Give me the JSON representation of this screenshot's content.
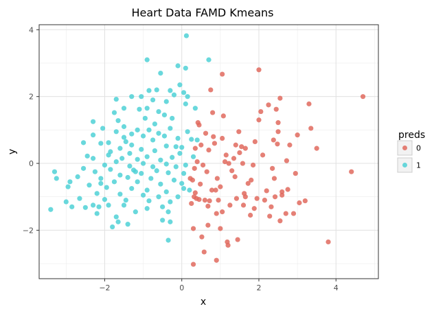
{
  "chart_data": {
    "type": "scatter",
    "title": "Heart Data FAMD Kmeans",
    "xlabel": "x",
    "ylabel": "y",
    "xlim": [
      -3.7,
      5.1
    ],
    "ylim": [
      -3.45,
      4.15
    ],
    "x_ticks": [
      -2,
      0,
      2,
      4
    ],
    "x_tick_labels": [
      "−2",
      "0",
      "2",
      "4"
    ],
    "y_ticks": [
      -2,
      0,
      2,
      4
    ],
    "y_tick_labels": [
      "−2",
      "0",
      "2",
      "4"
    ],
    "grid": true,
    "legend": {
      "title": "preds",
      "position": "right",
      "entries": [
        {
          "label": "0",
          "color": "#E06A5E"
        },
        {
          "label": "1",
          "color": "#4FD1D6"
        }
      ]
    },
    "series": [
      {
        "name": "0",
        "color": "#E06A5E",
        "points": [
          [
            4.7,
            2.0
          ],
          [
            3.8,
            -2.35
          ],
          [
            4.4,
            -0.25
          ],
          [
            3.5,
            0.45
          ],
          [
            3.35,
            1.05
          ],
          [
            3.3,
            1.78
          ],
          [
            3.2,
            -1.12
          ],
          [
            3.05,
            -1.18
          ],
          [
            3.0,
            0.85
          ],
          [
            2.95,
            -0.3
          ],
          [
            2.9,
            -1.5
          ],
          [
            2.8,
            0.55
          ],
          [
            2.75,
            -0.78
          ],
          [
            2.7,
            -1.5
          ],
          [
            2.72,
            0.08
          ],
          [
            2.6,
            -0.85
          ],
          [
            2.6,
            -0.95
          ],
          [
            2.55,
            -1.72
          ],
          [
            2.55,
            1.95
          ],
          [
            2.5,
            1.22
          ],
          [
            2.5,
            0.95
          ],
          [
            2.48,
            0.58
          ],
          [
            2.45,
            1.62
          ],
          [
            2.42,
            -1.0
          ],
          [
            2.4,
            -0.45
          ],
          [
            2.38,
            0.7
          ],
          [
            2.35,
            -0.15
          ],
          [
            2.32,
            -1.3
          ],
          [
            2.28,
            -1.58
          ],
          [
            2.25,
            1.75
          ],
          [
            2.2,
            -0.82
          ],
          [
            2.15,
            -1.1
          ],
          [
            2.1,
            0.25
          ],
          [
            2.05,
            1.55
          ],
          [
            2.0,
            2.8
          ],
          [
            2.0,
            1.3
          ],
          [
            1.95,
            -1.05
          ],
          [
            1.9,
            0.65
          ],
          [
            1.88,
            -1.35
          ],
          [
            1.85,
            -0.05
          ],
          [
            1.8,
            -0.5
          ],
          [
            1.78,
            -1.55
          ],
          [
            1.72,
            -0.6
          ],
          [
            1.65,
            0.45
          ],
          [
            1.62,
            -0.9
          ],
          [
            1.6,
            -1.25
          ],
          [
            1.58,
            0.0
          ],
          [
            1.55,
            0.5
          ],
          [
            1.5,
            0.32
          ],
          [
            1.48,
            0.95
          ],
          [
            1.45,
            -2.28
          ],
          [
            1.42,
            -1.05
          ],
          [
            1.4,
            0.55
          ],
          [
            1.38,
            -0.4
          ],
          [
            1.35,
            0.15
          ],
          [
            1.3,
            -0.22
          ],
          [
            1.25,
            -1.25
          ],
          [
            1.22,
            0.0
          ],
          [
            1.2,
            -2.45
          ],
          [
            1.18,
            -2.35
          ],
          [
            1.15,
            0.25
          ],
          [
            1.12,
            0.05
          ],
          [
            1.08,
            1.42
          ],
          [
            1.05,
            0.75
          ],
          [
            1.0,
            -0.7
          ],
          [
            1.0,
            -1.95
          ],
          [
            1.05,
            2.67
          ],
          [
            0.95,
            -1.1
          ],
          [
            0.92,
            -0.45
          ],
          [
            0.9,
            -1.5
          ],
          [
            0.9,
            -2.9
          ],
          [
            0.88,
            -0.8
          ],
          [
            0.85,
            0.6
          ],
          [
            0.82,
            0.8
          ],
          [
            0.8,
            1.52
          ],
          [
            0.78,
            -0.8
          ],
          [
            0.75,
            2.2
          ],
          [
            0.72,
            -1.12
          ],
          [
            0.7,
            0.4
          ],
          [
            0.68,
            -1.28
          ],
          [
            0.65,
            -0.25
          ],
          [
            0.62,
            0.9
          ],
          [
            0.6,
            -1.1
          ],
          [
            0.58,
            -2.65
          ],
          [
            0.55,
            -0.05
          ],
          [
            0.52,
            -2.2
          ],
          [
            0.5,
            0.55
          ],
          [
            0.48,
            -0.62
          ],
          [
            0.45,
            1.15
          ],
          [
            0.42,
            1.22
          ],
          [
            0.4,
            0.05
          ],
          [
            0.38,
            -1.05
          ],
          [
            0.35,
            0.45
          ],
          [
            0.33,
            -0.15
          ],
          [
            0.32,
            -1.0
          ],
          [
            0.3,
            -1.95
          ],
          [
            0.28,
            -0.5
          ],
          [
            0.25,
            -1.2
          ],
          [
            0.22,
            -0.45
          ],
          [
            0.3,
            -3.02
          ],
          [
            0.35,
            -0.88
          ],
          [
            0.45,
            -1.08
          ],
          [
            0.68,
            -1.85
          ],
          [
            1.05,
            -1.45
          ],
          [
            1.65,
            -1.0
          ]
        ]
      },
      {
        "name": "1",
        "color": "#4FD1D6",
        "points": [
          [
            0.12,
            3.82
          ],
          [
            -0.9,
            3.1
          ],
          [
            0.7,
            3.1
          ],
          [
            0.1,
            2.85
          ],
          [
            -0.1,
            2.92
          ],
          [
            -0.55,
            2.7
          ],
          [
            -0.05,
            2.35
          ],
          [
            -0.85,
            2.18
          ],
          [
            -0.65,
            2.2
          ],
          [
            -0.3,
            2.18
          ],
          [
            -0.2,
            2.05
          ],
          [
            0.05,
            2.12
          ],
          [
            0.15,
            2.0
          ],
          [
            -1.3,
            2.0
          ],
          [
            -1.05,
            2.0
          ],
          [
            -1.7,
            1.92
          ],
          [
            -0.75,
            1.9
          ],
          [
            -0.4,
            1.85
          ],
          [
            0.1,
            1.78
          ],
          [
            -1.5,
            1.65
          ],
          [
            -1.1,
            1.62
          ],
          [
            -0.9,
            1.65
          ],
          [
            -0.6,
            1.55
          ],
          [
            -1.75,
            1.52
          ],
          [
            -0.45,
            1.45
          ],
          [
            0.35,
            1.65
          ],
          [
            -0.25,
            1.35
          ],
          [
            -1.65,
            1.28
          ],
          [
            -2.3,
            1.25
          ],
          [
            -0.7,
            1.18
          ],
          [
            -1.5,
            1.1
          ],
          [
            -1.15,
            1.0
          ],
          [
            -2.05,
            1.05
          ],
          [
            -0.85,
            1.0
          ],
          [
            -0.3,
            1.05
          ],
          [
            0.15,
            0.95
          ],
          [
            -1.7,
            0.95
          ],
          [
            -1.3,
            0.88
          ],
          [
            -0.6,
            0.9
          ],
          [
            -2.3,
            0.85
          ],
          [
            -1.0,
            0.82
          ],
          [
            -0.1,
            0.75
          ],
          [
            0.25,
            0.72
          ],
          [
            -1.5,
            0.78
          ],
          [
            -0.75,
            0.7
          ],
          [
            -1.9,
            0.62
          ],
          [
            -2.1,
            0.6
          ],
          [
            -2.55,
            0.62
          ],
          [
            0.4,
            0.7
          ],
          [
            -1.3,
            0.55
          ],
          [
            -0.4,
            0.52
          ],
          [
            -0.15,
            0.5
          ],
          [
            0.0,
            0.48
          ],
          [
            -1.6,
            0.45
          ],
          [
            -1.05,
            0.42
          ],
          [
            -0.7,
            0.38
          ],
          [
            -1.35,
            0.3
          ],
          [
            -1.9,
            0.25
          ],
          [
            -2.45,
            0.22
          ],
          [
            -0.9,
            0.2
          ],
          [
            -0.25,
            0.18
          ],
          [
            -1.55,
            0.15
          ],
          [
            -1.15,
            0.12
          ],
          [
            -0.55,
            0.1
          ],
          [
            -2.3,
            0.15
          ],
          [
            0.3,
            0.2
          ],
          [
            -1.7,
            0.05
          ],
          [
            -1.0,
            0.0
          ],
          [
            -0.4,
            -0.02
          ],
          [
            -2.0,
            -0.05
          ],
          [
            -1.35,
            -0.08
          ],
          [
            -0.75,
            -0.1
          ],
          [
            -0.15,
            -0.1
          ],
          [
            0.1,
            -0.05
          ],
          [
            -2.55,
            -0.15
          ],
          [
            -1.85,
            -0.18
          ],
          [
            -1.25,
            -0.2
          ],
          [
            -0.65,
            -0.22
          ],
          [
            -2.25,
            -0.25
          ],
          [
            -1.05,
            -0.3
          ],
          [
            -0.35,
            -0.28
          ],
          [
            0.05,
            -0.3
          ],
          [
            -1.6,
            -0.35
          ],
          [
            -3.3,
            -0.25
          ],
          [
            -3.25,
            -0.45
          ],
          [
            -2.9,
            -0.55
          ],
          [
            -2.1,
            -0.45
          ],
          [
            -1.4,
            -0.42
          ],
          [
            -0.8,
            -0.45
          ],
          [
            -0.2,
            -0.5
          ],
          [
            0.0,
            -0.6
          ],
          [
            -1.75,
            -0.55
          ],
          [
            -1.15,
            -0.55
          ],
          [
            -0.55,
            -0.62
          ],
          [
            -2.4,
            -0.65
          ],
          [
            -2.95,
            -0.7
          ],
          [
            -1.95,
            -0.72
          ],
          [
            -1.3,
            -0.75
          ],
          [
            -0.9,
            -0.8
          ],
          [
            -0.4,
            -0.85
          ],
          [
            -2.2,
            -0.9
          ],
          [
            -1.6,
            -0.92
          ],
          [
            -1.0,
            -0.95
          ],
          [
            -0.6,
            -1.0
          ],
          [
            -0.1,
            -1.0
          ],
          [
            -2.65,
            -1.05
          ],
          [
            -2.0,
            -1.08
          ],
          [
            -1.45,
            -1.1
          ],
          [
            -0.85,
            -1.12
          ],
          [
            -0.3,
            -1.15
          ],
          [
            -3.0,
            -1.15
          ],
          [
            -2.3,
            -1.25
          ],
          [
            -1.9,
            -1.25
          ],
          [
            -1.5,
            -1.25
          ],
          [
            -0.5,
            -1.3
          ],
          [
            -2.85,
            -1.3
          ],
          [
            -2.15,
            -1.3
          ],
          [
            -0.9,
            -1.35
          ],
          [
            -3.4,
            -1.38
          ],
          [
            -2.5,
            -1.32
          ],
          [
            -1.2,
            -1.45
          ],
          [
            -0.35,
            -1.45
          ],
          [
            -2.2,
            -1.5
          ],
          [
            -1.7,
            -1.6
          ],
          [
            -0.5,
            -1.7
          ],
          [
            -1.65,
            -1.75
          ],
          [
            -0.3,
            -1.75
          ],
          [
            -1.4,
            -1.82
          ],
          [
            -1.8,
            -1.9
          ],
          [
            -0.35,
            -2.3
          ],
          [
            -2.1,
            -0.6
          ],
          [
            -1.45,
            0.65
          ],
          [
            0.2,
            -0.8
          ],
          [
            -1.2,
            -0.25
          ],
          [
            -0.05,
            0.3
          ],
          [
            -2.7,
            -0.4
          ],
          [
            -0.95,
            1.35
          ],
          [
            -0.45,
            0.82
          ],
          [
            0.05,
            -0.75
          ],
          [
            -1.85,
            0.35
          ]
        ]
      }
    ]
  }
}
